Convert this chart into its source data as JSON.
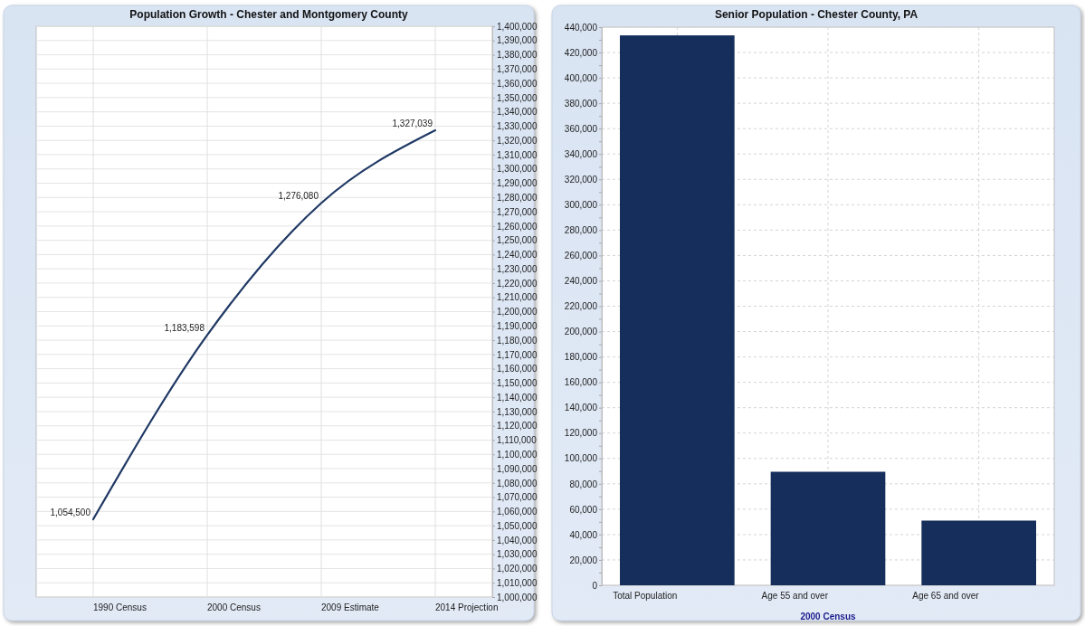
{
  "chart_data": [
    {
      "type": "line",
      "title": "Population Growth - Chester and Montgomery County",
      "categories": [
        "1990 Census",
        "2000 Census",
        "2009 Estimate",
        "2014 Projection"
      ],
      "series": [
        {
          "color": "#1f3864",
          "values": [
            1054500,
            1183598,
            1276080,
            1327039
          ],
          "value_labels": [
            "1,054,500",
            "1,183,598",
            "1,276,080",
            "1,327,039"
          ]
        }
      ],
      "ylim": [
        1000000,
        1400000
      ],
      "yticks": [
        {
          "value": 1000000,
          "label": "1,000,000"
        },
        {
          "value": 1010000,
          "label": "1,010,000"
        },
        {
          "value": 1020000,
          "label": "1,020,000"
        },
        {
          "value": 1030000,
          "label": "1,030,000"
        },
        {
          "value": 1040000,
          "label": "1,040,000"
        },
        {
          "value": 1050000,
          "label": "1,050,000"
        },
        {
          "value": 1060000,
          "label": "1,060,000"
        },
        {
          "value": 1070000,
          "label": "1,070,000"
        },
        {
          "value": 1080000,
          "label": "1,080,000"
        },
        {
          "value": 1090000,
          "label": "1,090,000"
        },
        {
          "value": 1100000,
          "label": "1,100,000"
        },
        {
          "value": 1110000,
          "label": "1,110,000"
        },
        {
          "value": 1120000,
          "label": "1,120,000"
        },
        {
          "value": 1130000,
          "label": "1,130,000"
        },
        {
          "value": 1140000,
          "label": "1,140,000"
        },
        {
          "value": 1150000,
          "label": "1,150,000"
        },
        {
          "value": 1160000,
          "label": "1,160,000"
        },
        {
          "value": 1170000,
          "label": "1,170,000"
        },
        {
          "value": 1180000,
          "label": "1,180,000"
        },
        {
          "value": 1190000,
          "label": "1,190,000"
        },
        {
          "value": 1200000,
          "label": "1,200,000"
        },
        {
          "value": 1210000,
          "label": "1,210,000"
        },
        {
          "value": 1220000,
          "label": "1,220,000"
        },
        {
          "value": 1230000,
          "label": "1,230,000"
        },
        {
          "value": 1240000,
          "label": "1,240,000"
        },
        {
          "value": 1250000,
          "label": "1,250,000"
        },
        {
          "value": 1260000,
          "label": "1,260,000"
        },
        {
          "value": 1270000,
          "label": "1,270,000"
        },
        {
          "value": 1280000,
          "label": "1,280,000"
        },
        {
          "value": 1290000,
          "label": "1,290,000"
        },
        {
          "value": 1300000,
          "label": "1,300,000"
        },
        {
          "value": 1310000,
          "label": "1,310,000"
        },
        {
          "value": 1320000,
          "label": "1,320,000"
        },
        {
          "value": 1330000,
          "label": "1,330,000"
        },
        {
          "value": 1340000,
          "label": "1,340,000"
        },
        {
          "value": 1350000,
          "label": "1,350,000"
        },
        {
          "value": 1360000,
          "label": "1,360,000"
        },
        {
          "value": 1370000,
          "label": "1,370,000"
        },
        {
          "value": 1380000,
          "label": "1,380,000"
        },
        {
          "value": 1390000,
          "label": "1,390,000"
        },
        {
          "value": 1400000,
          "label": "1,400,000"
        }
      ],
      "grid": true,
      "marker": "none"
    },
    {
      "type": "bar",
      "title": "Senior Population - Chester County, PA",
      "xlabel": "2000 Census",
      "categories": [
        "Total Population",
        "Age 55 and over",
        "Age 65 and over"
      ],
      "values": [
        433500,
        89500,
        51000
      ],
      "color": "#152e5b",
      "ylim": [
        0,
        440000
      ],
      "yticks": [
        0,
        {
          "value": 10000,
          "label": null
        },
        {
          "value": 20000,
          "label": "20,000"
        },
        {
          "value": 30000,
          "label": null
        },
        {
          "value": 40000,
          "label": "40,000"
        },
        {
          "value": 50000,
          "label": null
        },
        {
          "value": 60000,
          "label": "60,000"
        },
        {
          "value": 70000,
          "label": null
        },
        {
          "value": 80000,
          "label": "80,000"
        },
        {
          "value": 90000,
          "label": null
        },
        {
          "value": 100000,
          "label": "100,000"
        },
        {
          "value": 110000,
          "label": null
        },
        {
          "value": 120000,
          "label": "120,000"
        },
        {
          "value": 130000,
          "label": null
        },
        {
          "value": 140000,
          "label": "140,000"
        },
        {
          "value": 150000,
          "label": null
        },
        {
          "value": 160000,
          "label": "160,000"
        },
        {
          "value": 170000,
          "label": null
        },
        {
          "value": 180000,
          "label": "180,000"
        },
        {
          "value": 190000,
          "label": null
        },
        {
          "value": 200000,
          "label": "200,000"
        },
        {
          "value": 210000,
          "label": null
        },
        {
          "value": 220000,
          "label": "220,000"
        },
        {
          "value": 230000,
          "label": null
        },
        {
          "value": 240000,
          "label": "240,000"
        },
        {
          "value": 250000,
          "label": null
        },
        {
          "value": 260000,
          "label": "260,000"
        },
        {
          "value": 270000,
          "label": null
        },
        {
          "value": 280000,
          "label": "280,000"
        },
        {
          "value": 290000,
          "label": null
        },
        {
          "value": 300000,
          "label": "300,000"
        },
        {
          "value": 310000,
          "label": null
        },
        {
          "value": 320000,
          "label": "320,000"
        },
        {
          "value": 330000,
          "label": null
        },
        {
          "value": 340000,
          "label": "340,000"
        },
        {
          "value": 350000,
          "label": null
        },
        {
          "value": 360000,
          "label": "360,000"
        },
        {
          "value": 370000,
          "label": null
        },
        {
          "value": 380000,
          "label": "380,000"
        },
        {
          "value": 390000,
          "label": null
        },
        {
          "value": 400000,
          "label": "400,000"
        },
        {
          "value": 410000,
          "label": null
        },
        {
          "value": 420000,
          "label": "420,000"
        },
        {
          "value": 430000,
          "label": null
        },
        {
          "value": 440000,
          "label": "440,000"
        }
      ],
      "grid": true
    }
  ]
}
